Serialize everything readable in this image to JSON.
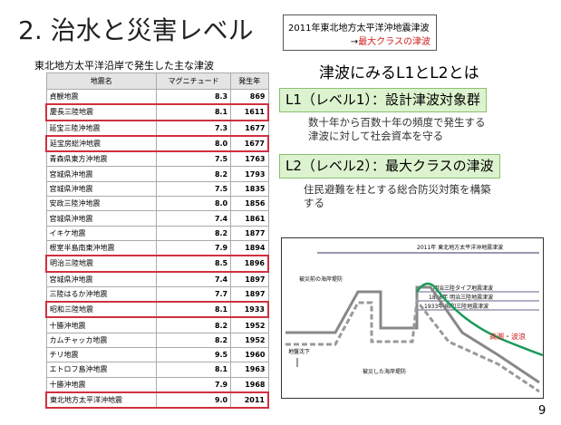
{
  "header": {
    "number": "2.",
    "title": "治水と災害レベル"
  },
  "callout": {
    "line1": "2011年東北地方太平洋沖地震津波",
    "arrow": "→",
    "line2": "最大クラスの津波"
  },
  "table": {
    "caption": "東北地方太平洋沿岸で発生した主な津波",
    "columns": [
      "地震名",
      "マグニチュード",
      "発生年"
    ],
    "rows": [
      {
        "cells": [
          "貞観地震",
          "8.3",
          "869"
        ],
        "highlight": false
      },
      {
        "cells": [
          "慶長三陸地震",
          "8.1",
          "1611"
        ],
        "highlight": true
      },
      {
        "cells": [
          "延宝三陸沖地震",
          "7.3",
          "1677"
        ],
        "highlight": false
      },
      {
        "cells": [
          "延宝房総沖地震",
          "8.0",
          "1677"
        ],
        "highlight": true
      },
      {
        "cells": [
          "青森県東方沖地震",
          "7.5",
          "1763"
        ],
        "highlight": false
      },
      {
        "cells": [
          "宮城県沖地震",
          "8.2",
          "1793"
        ],
        "highlight": false
      },
      {
        "cells": [
          "宮城県沖地震",
          "7.5",
          "1835"
        ],
        "highlight": false
      },
      {
        "cells": [
          "安政三陸沖地震",
          "8.0",
          "1856"
        ],
        "highlight": false
      },
      {
        "cells": [
          "宮城県沖地震",
          "7.4",
          "1861"
        ],
        "highlight": false
      },
      {
        "cells": [
          "イキケ地震",
          "8.2",
          "1877"
        ],
        "highlight": false
      },
      {
        "cells": [
          "根室半島南東沖地震",
          "7.9",
          "1894"
        ],
        "highlight": false
      },
      {
        "cells": [
          "明治三陸地震",
          "8.5",
          "1896"
        ],
        "highlight": true
      },
      {
        "cells": [
          "宮城県沖地震",
          "7.4",
          "1897"
        ],
        "highlight": false
      },
      {
        "cells": [
          "三陸はるか沖地震",
          "7.7",
          "1897"
        ],
        "highlight": false
      },
      {
        "cells": [
          "昭和三陸地震",
          "8.1",
          "1933"
        ],
        "highlight": true
      },
      {
        "cells": [
          "十勝沖地震",
          "8.2",
          "1952"
        ],
        "highlight": false
      },
      {
        "cells": [
          "カムチャッカ地震",
          "8.2",
          "1952"
        ],
        "highlight": false
      },
      {
        "cells": [
          "チリ地震",
          "9.5",
          "1960"
        ],
        "highlight": false
      },
      {
        "cells": [
          "エトロフ島沖地震",
          "8.1",
          "1963"
        ],
        "highlight": false
      },
      {
        "cells": [
          "十勝沖地震",
          "7.9",
          "1968"
        ],
        "highlight": false
      },
      {
        "cells": [
          "東北地方太平洋沖地震",
          "9.0",
          "2011"
        ],
        "highlight": true
      }
    ]
  },
  "heading": "津波にみるL1とL2とは",
  "l1": {
    "title": "L1（レベル1）：設計津波対象群",
    "text": [
      "数十年から百数十年の頻度で発生する",
      "津波に対して社会資本を守る"
    ]
  },
  "l2": {
    "title": "L2（レベル2）：最大クラスの津波",
    "text": [
      "住民避難を柱とする総合防災対策を構築",
      "する"
    ]
  },
  "diagram": {
    "top_label": "2011年 東北地方太平洋沖地震津波",
    "before_levee": "被災前の海岸堤防",
    "levels": [
      "明治三陸タイプ地震津波",
      "1896年 明治三陸地震津波",
      "1933年 昭和三陸地震津波"
    ],
    "subsidence": "地盤沈下",
    "damaged_levee": "被災した海岸堤防",
    "waves": "高潮・波浪"
  },
  "page_number": "9"
}
